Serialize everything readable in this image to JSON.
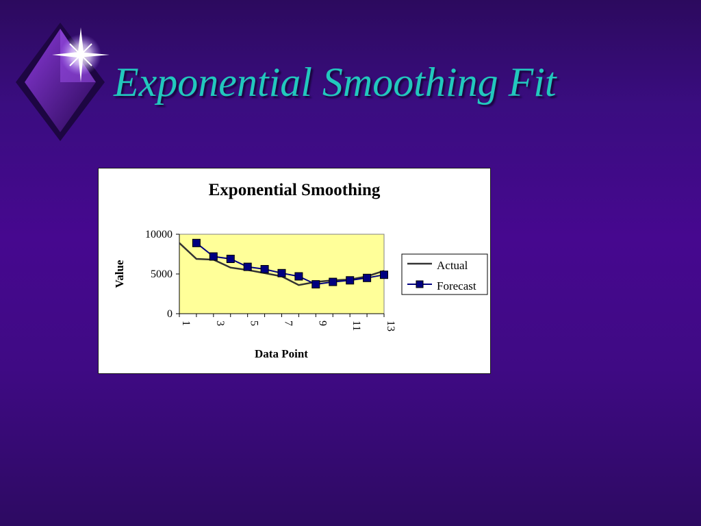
{
  "slide": {
    "title": "Exponential Smoothing Fit"
  },
  "colors": {
    "background": "#46088f",
    "title": "#22c8bd",
    "plot_area": "#ffff99",
    "actual_line": "#333333",
    "forecast_line": "#000080",
    "forecast_marker": "#000080"
  },
  "chart_data": {
    "type": "line",
    "title": "Exponential Smoothing",
    "xlabel": "Data Point",
    "ylabel": "Value",
    "x": [
      1,
      2,
      3,
      4,
      5,
      6,
      7,
      8,
      9,
      10,
      11,
      12,
      13
    ],
    "x_tick_labels": [
      "1",
      "3",
      "5",
      "7",
      "9",
      "11",
      "13"
    ],
    "y_ticks": [
      0,
      5000,
      10000
    ],
    "ylim": [
      0,
      10000
    ],
    "grid": false,
    "legend_position": "right",
    "series": [
      {
        "name": "Actual",
        "marker": "none",
        "values": [
          8900,
          6900,
          6800,
          5800,
          5500,
          5100,
          4700,
          3600,
          4000,
          4200,
          4300,
          4700,
          5400
        ]
      },
      {
        "name": "Forecast",
        "marker": "square",
        "values": [
          null,
          8900,
          7200,
          6900,
          5900,
          5600,
          5100,
          4700,
          3700,
          4000,
          4200,
          4500,
          4900
        ]
      }
    ]
  }
}
